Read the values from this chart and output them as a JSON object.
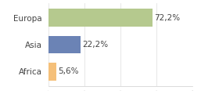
{
  "categories": [
    "Europa",
    "Asia",
    "Africa"
  ],
  "values": [
    72.2,
    22.2,
    5.6
  ],
  "labels": [
    "72,2%",
    "22,2%",
    "5,6%"
  ],
  "bar_colors": [
    "#b5c98e",
    "#6b83b5",
    "#f5c07a"
  ],
  "background_color": "#ffffff",
  "xlim": [
    0,
    100
  ],
  "label_fontsize": 7.5,
  "tick_fontsize": 7.5,
  "bar_height": 0.65
}
